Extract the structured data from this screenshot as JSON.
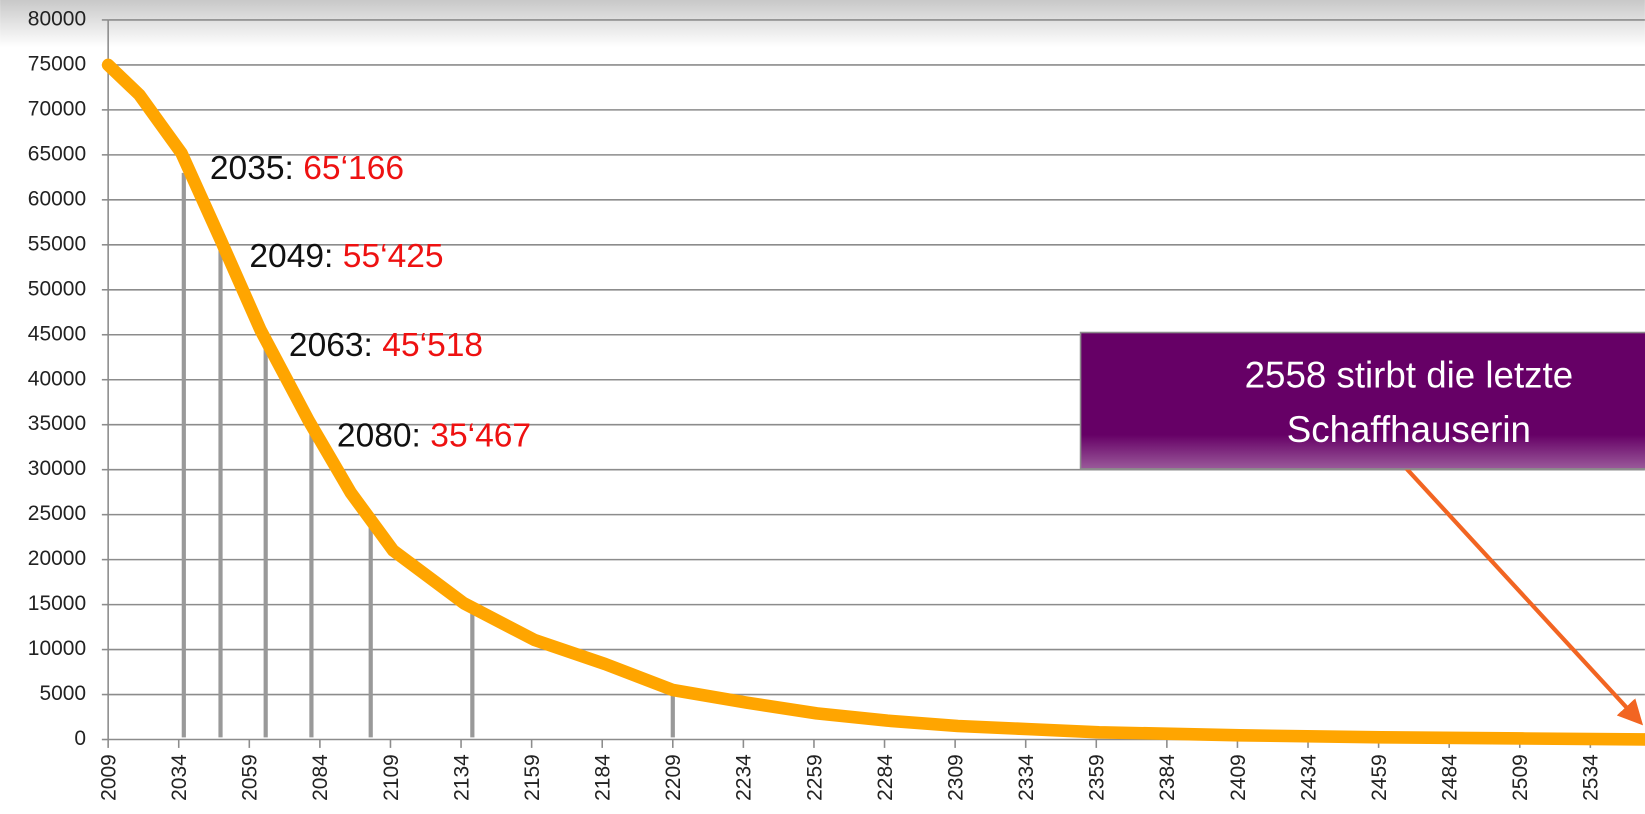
{
  "chart_data": {
    "type": "line",
    "x": [
      2009,
      2020,
      2035,
      2049,
      2063,
      2080,
      2095,
      2110,
      2135,
      2160,
      2185,
      2209,
      2235,
      2260,
      2285,
      2310,
      2335,
      2360,
      2410,
      2460,
      2510,
      2558
    ],
    "series": [
      {
        "color": "#ffa500",
        "values": [
          75000,
          71700,
          65166,
          55425,
          45518,
          35467,
          27400,
          21000,
          15150,
          11070,
          8400,
          5500,
          4100,
          2900,
          2100,
          1500,
          1150,
          800,
          470,
          250,
          120,
          0
        ]
      }
    ],
    "drop_lines": {
      "color": "#999999",
      "x": [
        2035.8,
        2048.8,
        2064.8,
        2081,
        2102,
        2138,
        2209
      ],
      "values": [
        63000,
        55000,
        43500,
        34500,
        25000,
        15000,
        5300
      ]
    },
    "annotations": [
      {
        "label": "2035:",
        "value_label": "65‘166",
        "x": 2035,
        "y": 65166
      },
      {
        "label": "2049:",
        "value_label": "55‘425",
        "x": 2049,
        "y": 55425
      },
      {
        "label": "2063:",
        "value_label": "45‘518",
        "x": 2063,
        "y": 45518
      },
      {
        "label": "2080:",
        "value_label": "35‘467",
        "x": 2080,
        "y": 35467
      }
    ],
    "callout": {
      "lines": [
        "2558 stirbt die letzte",
        "Schaffhauserin"
      ],
      "color": "#660066",
      "arrow_color": "#f26522"
    },
    "xlim": [
      2009,
      2554
    ],
    "xticks": [
      2009,
      2034,
      2059,
      2084,
      2109,
      2134,
      2159,
      2184,
      2209,
      2234,
      2259,
      2284,
      2309,
      2334,
      2359,
      2384,
      2409,
      2434,
      2459,
      2484,
      2509,
      2534
    ],
    "ylim": [
      0,
      80000
    ],
    "yticks": [
      0,
      5000,
      10000,
      15000,
      20000,
      25000,
      30000,
      35000,
      40000,
      45000,
      50000,
      55000,
      60000,
      65000,
      70000,
      75000,
      80000
    ],
    "grid": true
  }
}
